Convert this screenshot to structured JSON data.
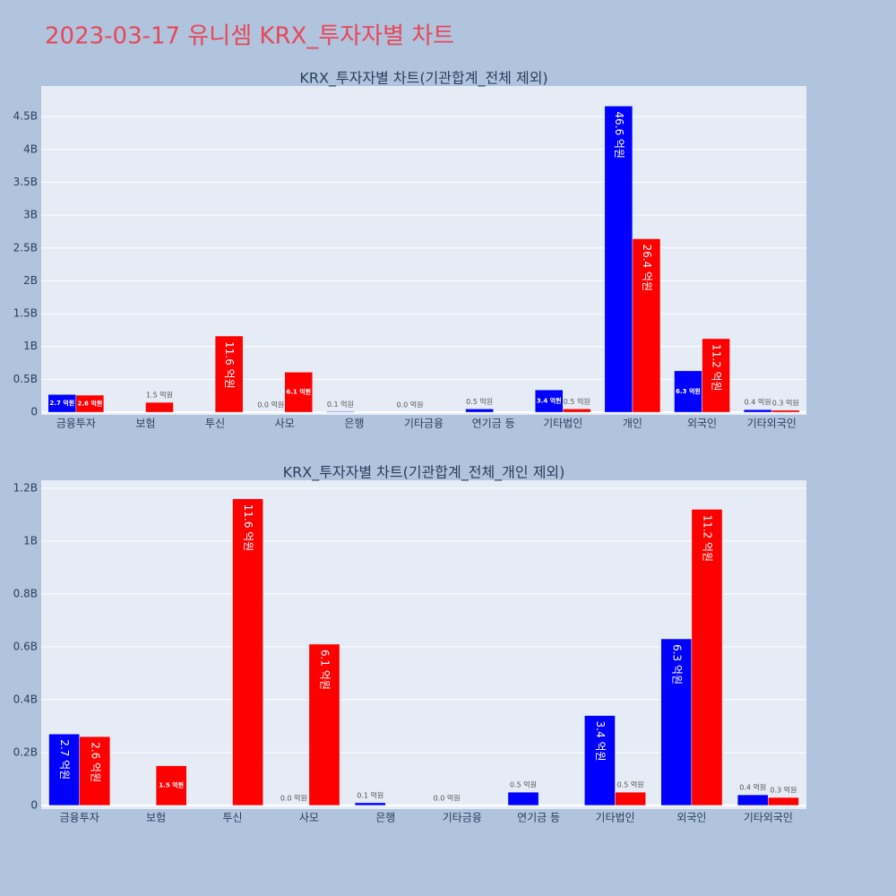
{
  "title": "2023-03-17 유니셈 KRX_투자자별 차트",
  "chart_data": [
    {
      "type": "bar",
      "title": "KRX_투자자별 차트(기관합계_전체 제외)",
      "categories": [
        "금융투자",
        "보험",
        "투신",
        "사모",
        "은행",
        "기타금융",
        "연기금 등",
        "기타법인",
        "개인",
        "외국인",
        "기타외국인"
      ],
      "series": [
        {
          "color": "#0000ff",
          "values": [
            270000000,
            null,
            null,
            0,
            10000000,
            0,
            50000000,
            340000000,
            4660000000,
            630000000,
            40000000
          ],
          "value_labels": [
            "2.7 억원",
            null,
            null,
            "0.0 억원",
            "0.1 억원",
            "0.0 억원",
            "0.5 억원",
            "3.4 억원",
            "46.6 억원",
            "6.3 억원",
            "0.4 억원"
          ]
        },
        {
          "color": "#ff0000",
          "values": [
            260000000,
            150000000,
            1160000000,
            610000000,
            null,
            null,
            null,
            50000000,
            2640000000,
            1120000000,
            30000000
          ],
          "value_labels": [
            "2.6 억원",
            "1.5 억원",
            "11.6 억원",
            "6.1 억원",
            null,
            null,
            null,
            "0.5 억원",
            "26.4 억원",
            "11.2 억원",
            "0.3 억원"
          ]
        }
      ],
      "ylim": [
        -40000000,
        4965000000
      ],
      "yticks": [
        0,
        {
          "value": 500000000,
          "label": "0.5B"
        },
        {
          "value": 1000000000,
          "label": "1B"
        },
        {
          "value": 1500000000,
          "label": "1.5B"
        },
        {
          "value": 2000000000,
          "label": "2B"
        },
        {
          "value": 2500000000,
          "label": "2.5B"
        },
        {
          "value": 3000000000,
          "label": "3B"
        },
        {
          "value": 3500000000,
          "label": "3.5B"
        },
        {
          "value": 4000000000,
          "label": "4B"
        },
        {
          "value": 4500000000,
          "label": "4.5B"
        }
      ],
      "grid": true
    },
    {
      "type": "bar",
      "title": "KRX_투자자별 차트(기관합계_전체_개인 제외)",
      "categories": [
        "금융투자",
        "보험",
        "투신",
        "사모",
        "은행",
        "기타금융",
        "연기금 등",
        "기타법인",
        "외국인",
        "기타외국인"
      ],
      "series": [
        {
          "color": "#0000ff",
          "values": [
            270000000,
            null,
            null,
            0,
            10000000,
            0,
            50000000,
            340000000,
            630000000,
            40000000
          ],
          "value_labels": [
            "2.7 억원",
            null,
            null,
            "0.0 억원",
            "0.1 억원",
            "0.0 억원",
            "0.5 억원",
            "3.4 억원",
            "6.3 억원",
            "0.4 억원"
          ]
        },
        {
          "color": "#ff0000",
          "values": [
            260000000,
            150000000,
            1160000000,
            610000000,
            null,
            null,
            null,
            50000000,
            1120000000,
            30000000
          ],
          "value_labels": [
            "2.6 억원",
            "1.5 억원",
            "11.6 억원",
            "6.1 억원",
            null,
            null,
            null,
            "0.5 억원",
            "11.2 억원",
            "0.3 억원"
          ]
        }
      ],
      "ylim": [
        -14000000,
        1230000000
      ],
      "yticks": [
        0,
        {
          "value": 200000000,
          "label": "0.2B"
        },
        {
          "value": 400000000,
          "label": "0.4B"
        },
        {
          "value": 600000000,
          "label": "0.6B"
        },
        {
          "value": 800000000,
          "label": "0.8B"
        },
        {
          "value": 1000000000,
          "label": "1B"
        },
        {
          "value": 1200000000,
          "label": "1.2B"
        }
      ],
      "grid": true
    }
  ]
}
